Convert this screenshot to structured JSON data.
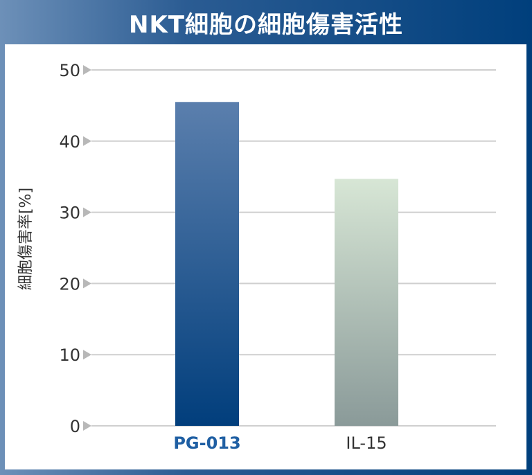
{
  "title": "NKT細胞の細胞傷害活性",
  "chart_data": {
    "type": "bar",
    "title": "NKT細胞の細胞傷害活性",
    "ylabel": "細胞傷害率[%]",
    "xlabel": "",
    "ylim": [
      0,
      50
    ],
    "yticks": [
      0,
      10,
      20,
      30,
      40,
      50
    ],
    "grid": true,
    "categories": [
      "PG-013",
      "IL-15"
    ],
    "values": [
      45.5,
      34.7
    ],
    "colors": {
      "pg013_top": "#5b7fad",
      "pg013_bottom": "#013e7c",
      "il15_top": "#d7e6d5",
      "il15_bottom": "#8a9a99",
      "highlight_label": "#1f5fa3",
      "normal_label": "#333333",
      "grid": "#cfcfcf"
    }
  }
}
